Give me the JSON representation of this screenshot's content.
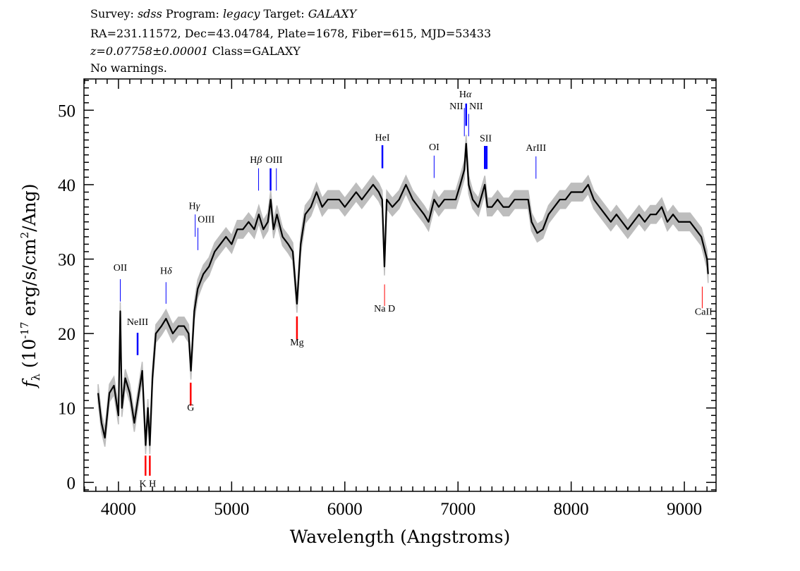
{
  "header": {
    "line1": "Survey: sdss Program: legacy Target: GALAXY",
    "line2": "RA=231.11572, Dec=43.04784, Plate=1678, Fiber=615, MJD=53433",
    "line3": "z=0.07758±0.00001 Class=GALAXY",
    "line4": "No warnings."
  },
  "chart_data": {
    "type": "line",
    "xlabel": "Wavelength (Angstroms)",
    "ylabel": "f_λ (10^-17 erg/s/cm^2/Ang)",
    "xlim": [
      3695,
      9280
    ],
    "ylim": [
      -1.2,
      54.2
    ],
    "xticks": [
      4000,
      5000,
      6000,
      7000,
      8000,
      9000
    ],
    "yticks": [
      0,
      10,
      20,
      30,
      40,
      50
    ],
    "grid": false,
    "colors": {
      "spectrum": "#000000",
      "error_band": "#bdbdbd",
      "emission": "#0000ff",
      "absorption": "#ff0000",
      "weak": "#000000"
    },
    "spectrum": {
      "x": [
        3820,
        3850,
        3880,
        3920,
        3960,
        4000,
        4016,
        4030,
        4060,
        4100,
        4140,
        4180,
        4210,
        4240,
        4260,
        4277,
        4300,
        4330,
        4380,
        4420,
        4480,
        4530,
        4580,
        4620,
        4640,
        4670,
        4700,
        4750,
        4800,
        4850,
        4900,
        4950,
        5000,
        5050,
        5100,
        5150,
        5200,
        5240,
        5280,
        5320,
        5345,
        5370,
        5400,
        5450,
        5500,
        5540,
        5577,
        5610,
        5650,
        5700,
        5750,
        5800,
        5850,
        5900,
        5950,
        6000,
        6050,
        6100,
        6150,
        6200,
        6250,
        6300,
        6330,
        6350,
        6370,
        6420,
        6480,
        6540,
        6600,
        6650,
        6700,
        6740,
        6789,
        6830,
        6880,
        6930,
        6980,
        7020,
        7056,
        7072,
        7094,
        7130,
        7180,
        7237,
        7260,
        7300,
        7350,
        7400,
        7450,
        7500,
        7560,
        7620,
        7650,
        7700,
        7750,
        7800,
        7850,
        7900,
        7950,
        8000,
        8100,
        8150,
        8200,
        8250,
        8300,
        8350,
        8400,
        8450,
        8500,
        8550,
        8600,
        8650,
        8700,
        8750,
        8800,
        8850,
        8900,
        8950,
        9000,
        9050,
        9100,
        9150,
        9200,
        9210
      ],
      "y": [
        12,
        8,
        6,
        12,
        13,
        9,
        23,
        10,
        14,
        12,
        8,
        12,
        15,
        5,
        10,
        5,
        14,
        20,
        21,
        22,
        20,
        21,
        21,
        20,
        15,
        23,
        26,
        28,
        29,
        31,
        32,
        33,
        32,
        34,
        34,
        35,
        34,
        36,
        34,
        35,
        38,
        34,
        36,
        33,
        32,
        31,
        24,
        32,
        36,
        37,
        39,
        37,
        38,
        38,
        38,
        37,
        38,
        39,
        38,
        39,
        40,
        39,
        38,
        29,
        38,
        37,
        38,
        40,
        38,
        37,
        36,
        35,
        38,
        37,
        38,
        38,
        38,
        40,
        42,
        45.5,
        40,
        38,
        37,
        40,
        37,
        37,
        38,
        37,
        37,
        38,
        38,
        38,
        35,
        33.5,
        34,
        36,
        37,
        38,
        38,
        39,
        39,
        40,
        38,
        37,
        36,
        35,
        36,
        35,
        34,
        35,
        36,
        35,
        36,
        36,
        37,
        35,
        36,
        35,
        35,
        35,
        34,
        33,
        30,
        28
      ],
      "error": 1.2
    },
    "lines": [
      {
        "label": "OII",
        "wavelength": 4016,
        "kind": "emission",
        "weak": true,
        "y_top": 27.3,
        "y_bottom": 24.3,
        "label_at": 4016,
        "label_y": 28.9
      },
      {
        "label": "NeIII",
        "wavelength": 4169,
        "kind": "emission",
        "weak": false,
        "y_top": 20.1,
        "y_bottom": 17.1,
        "label_at": 4169,
        "label_y": 21.6
      },
      {
        "label": "Hδ",
        "wavelength": 4420,
        "kind": "emission",
        "weak": true,
        "y_top": 26.9,
        "y_bottom": 24.0,
        "label_at": 4420,
        "label_y": 28.5
      },
      {
        "label": "Hγ",
        "wavelength": 4678,
        "kind": "emission",
        "weak": true,
        "y_top": 36.0,
        "y_bottom": 33.0,
        "label_at": 4670,
        "label_y": 37.2
      },
      {
        "label": "OIII",
        "wavelength": 4702,
        "kind": "emission",
        "weak": true,
        "y_top": 34.2,
        "y_bottom": 31.2,
        "label_at": 4775,
        "label_y": 35.4
      },
      {
        "label": "Hβ",
        "wavelength": 5238,
        "kind": "emission",
        "weak": true,
        "y_top": 42.2,
        "y_bottom": 39.2,
        "label_at": 5215,
        "label_y": 43.4
      },
      {
        "label": "",
        "wavelength": 5344,
        "kind": "emission",
        "weak": false,
        "y_top": 42.2,
        "y_bottom": 39.2
      },
      {
        "label": "OIII",
        "wavelength": 5395,
        "kind": "emission",
        "weak": true,
        "y_top": 42.2,
        "y_bottom": 39.2,
        "label_at": 5375,
        "label_y": 43.4
      },
      {
        "label": "HeI",
        "wavelength": 6332,
        "kind": "emission",
        "weak": false,
        "y_top": 45.3,
        "y_bottom": 42.2,
        "label_at": 6332,
        "label_y": 46.4
      },
      {
        "label": "OI",
        "wavelength": 6789,
        "kind": "emission",
        "weak": true,
        "y_top": 43.9,
        "y_bottom": 40.9,
        "label_at": 6789,
        "label_y": 45.1
      },
      {
        "label": "NII",
        "wavelength": 7056,
        "kind": "emission",
        "weak": true,
        "y_top": 50.3,
        "y_bottom": 46.5,
        "label_at": 6985,
        "label_y": 50.6
      },
      {
        "label": "Hα",
        "wavelength": 7072,
        "kind": "emission",
        "weak": false,
        "y_top": 50.9,
        "y_bottom": 47.9,
        "label_at": 7065,
        "label_y": 52.2
      },
      {
        "label": "NII",
        "wavelength": 7094,
        "kind": "emission",
        "weak": true,
        "y_top": 49.5,
        "y_bottom": 46.5,
        "label_at": 7160,
        "label_y": 50.6
      },
      {
        "label": "SII",
        "wavelength": 7237,
        "kind": "emission",
        "weak": false,
        "y_top": 45.2,
        "y_bottom": 42.1,
        "label_at": 7245,
        "label_y": 46.3
      },
      {
        "label": "",
        "wavelength": 7253,
        "kind": "emission",
        "weak": false,
        "y_top": 45.2,
        "y_bottom": 42.1
      },
      {
        "label": "ArIII",
        "wavelength": 7689,
        "kind": "emission",
        "weak": true,
        "y_top": 43.8,
        "y_bottom": 40.8,
        "label_at": 7689,
        "label_y": 45.0
      },
      {
        "label": "",
        "wavelength": 4239,
        "kind": "absorption",
        "weak": false,
        "y_top": 3.6,
        "y_bottom": 0.9
      },
      {
        "label": "K H",
        "wavelength": 4277,
        "kind": "absorption",
        "weak": false,
        "y_top": 3.6,
        "y_bottom": 0.9,
        "label_at": 4258,
        "label_y": -0.1
      },
      {
        "label": "G",
        "wavelength": 4638,
        "kind": "absorption",
        "weak": false,
        "y_top": 13.4,
        "y_bottom": 10.3,
        "label_at": 4638,
        "label_y": 10.1
      },
      {
        "label": "Mg",
        "wavelength": 5577,
        "kind": "absorption",
        "weak": false,
        "y_top": 22.3,
        "y_bottom": 19.2,
        "label_at": 5577,
        "label_y": 18.9
      },
      {
        "label": "Na D",
        "wavelength": 6351,
        "kind": "absorption",
        "weak": true,
        "y_top": 26.6,
        "y_bottom": 23.7,
        "label_at": 6351,
        "label_y": 23.4
      },
      {
        "label": "CaII",
        "wavelength": 9158,
        "kind": "absorption",
        "weak": true,
        "y_top": 26.3,
        "y_bottom": 23.4,
        "label_at": 9170,
        "label_y": 23.0
      }
    ]
  }
}
